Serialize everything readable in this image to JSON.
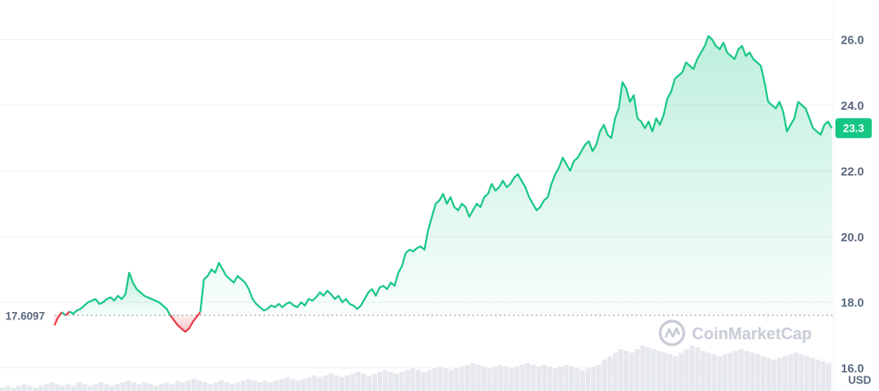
{
  "chart_data": {
    "type": "area",
    "y_ticks": [
      16,
      18,
      20,
      22,
      24,
      26
    ],
    "y_tick_labels": [
      "16.0",
      "18.0",
      "20.0",
      "22.0",
      "24.0",
      "26.0"
    ],
    "ylim": [
      15.3,
      27.2
    ],
    "baseline_value": 17.6097,
    "baseline_label": "17.6097",
    "current_price": 23.3,
    "current_price_label": "23.3",
    "unit_label": "USD",
    "grid": true,
    "up_color": "#16c784",
    "down_color": "#ea3943",
    "series": [
      {
        "values": [
          17.3,
          17.55,
          17.7,
          17.6,
          17.72,
          17.65,
          17.75,
          17.8,
          17.9,
          18.0,
          18.05,
          18.1,
          17.95,
          18.0,
          18.1,
          18.15,
          18.05,
          18.2,
          18.1,
          18.25,
          18.9,
          18.6,
          18.4,
          18.3,
          18.2,
          18.15,
          18.1,
          18.05,
          18.0,
          17.9,
          17.8,
          17.6,
          17.45,
          17.3,
          17.2,
          17.1,
          17.2,
          17.4,
          17.55,
          17.7,
          18.7,
          18.8,
          19.0,
          18.9,
          19.2,
          19.0,
          18.8,
          18.7,
          18.6,
          18.8,
          18.7,
          18.6,
          18.4,
          18.1,
          17.95,
          17.85,
          17.75,
          17.8,
          17.9,
          17.85,
          17.95,
          17.85,
          17.95,
          18.0,
          17.9,
          17.85,
          18.0,
          17.9,
          18.1,
          18.05,
          18.15,
          18.3,
          18.2,
          18.35,
          18.25,
          18.1,
          18.2,
          18.0,
          18.1,
          17.95,
          17.9,
          17.8,
          17.9,
          18.1,
          18.3,
          18.4,
          18.2,
          18.45,
          18.5,
          18.4,
          18.6,
          18.5,
          18.9,
          19.1,
          19.5,
          19.6,
          19.55,
          19.65,
          19.7,
          19.6,
          20.2,
          20.6,
          21.0,
          21.1,
          21.3,
          21.0,
          21.2,
          20.9,
          20.8,
          21.0,
          20.9,
          20.6,
          20.8,
          21.0,
          20.9,
          21.2,
          21.3,
          21.6,
          21.4,
          21.5,
          21.7,
          21.5,
          21.6,
          21.8,
          21.9,
          21.7,
          21.5,
          21.2,
          21.0,
          20.8,
          20.9,
          21.1,
          21.2,
          21.6,
          21.9,
          22.1,
          22.4,
          22.2,
          22.0,
          22.3,
          22.4,
          22.6,
          22.8,
          22.9,
          22.6,
          22.8,
          23.2,
          23.4,
          23.1,
          23.0,
          23.6,
          23.9,
          24.7,
          24.5,
          24.1,
          24.3,
          23.6,
          23.5,
          23.3,
          23.5,
          23.2,
          23.6,
          23.4,
          23.7,
          24.2,
          24.4,
          24.8,
          24.9,
          25.0,
          25.3,
          25.2,
          25.1,
          25.4,
          25.6,
          25.8,
          26.1,
          26.0,
          25.8,
          25.7,
          25.9,
          25.6,
          25.5,
          25.4,
          25.7,
          25.8,
          25.5,
          25.6,
          25.4,
          25.3,
          25.2,
          24.7,
          24.1,
          24.0,
          23.9,
          24.1,
          23.8,
          23.2,
          23.4,
          23.6,
          24.1,
          24.0,
          23.9,
          23.6,
          23.3,
          23.2,
          23.1,
          23.4,
          23.5,
          23.3
        ]
      }
    ],
    "volume": [
      2,
      3,
      2,
      3,
      4,
      3,
      2,
      3,
      4,
      5,
      4,
      3,
      4,
      3,
      5,
      4,
      3,
      4,
      5,
      4,
      3,
      4,
      5,
      6,
      5,
      4,
      5,
      4,
      3,
      4,
      5,
      4,
      6,
      5,
      6,
      7,
      6,
      5,
      4,
      5,
      6,
      5,
      4,
      5,
      6,
      7,
      6,
      5,
      6,
      5,
      6,
      7,
      8,
      7,
      6,
      7,
      8,
      9,
      8,
      9,
      10,
      9,
      8,
      9,
      10,
      11,
      10,
      9,
      10,
      11,
      12,
      11,
      10,
      11,
      12,
      13,
      12,
      11,
      12,
      13,
      14,
      13,
      12,
      13,
      14,
      15,
      16,
      15,
      14,
      13,
      14,
      15,
      14,
      13,
      14,
      15,
      16,
      15,
      14,
      15,
      14,
      13,
      14,
      15,
      14,
      13,
      12,
      13,
      14,
      15,
      18,
      20,
      22,
      24,
      23,
      22,
      24,
      26,
      25,
      24,
      23,
      22,
      21,
      20,
      22,
      24,
      26,
      25,
      23,
      22,
      21,
      20,
      21,
      22,
      23,
      24,
      23,
      22,
      21,
      20,
      19,
      18,
      19,
      20,
      21,
      22,
      21,
      20,
      19,
      18,
      17,
      16
    ]
  },
  "watermark": {
    "logo_icon": "coinmarketcap-logo",
    "text": "CoinMarketCap"
  }
}
